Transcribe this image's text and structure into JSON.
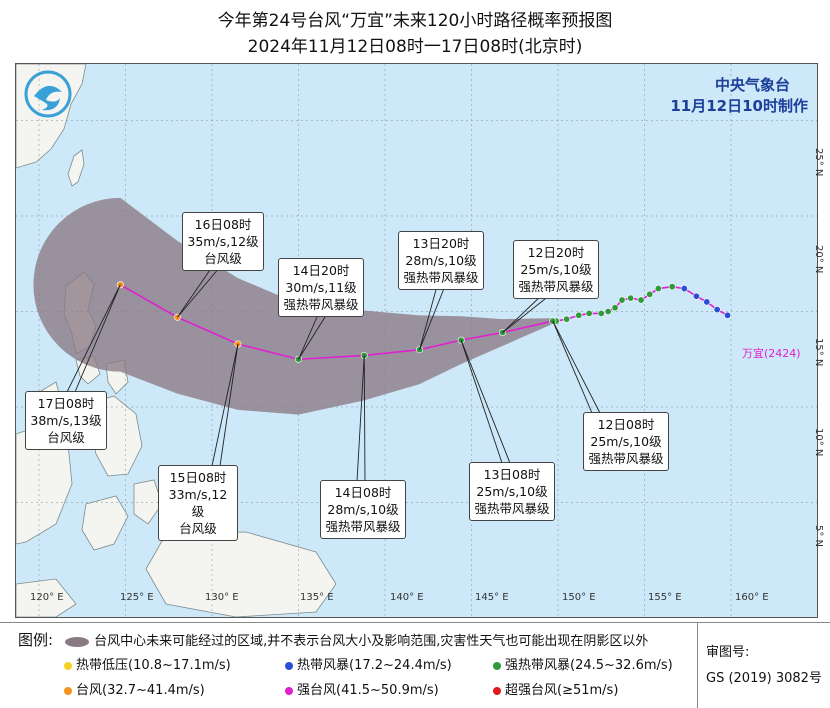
{
  "title_line1": "今年第24号台风“万宜”未来120小时路径概率预报图",
  "title_line2": "2024年11月12日08时一17日08时(北京时)",
  "agency": "中央气象台",
  "issued": "11月12日10时制作",
  "typhoon_name": "万宜(2424)",
  "lon_labels": [
    "120° E",
    "125° E",
    "130° E",
    "135° E",
    "140° E",
    "145° E",
    "150° E",
    "155° E",
    "160° E"
  ],
  "lat_labels": [
    "5° N",
    "10° N",
    "15° N",
    "20° N",
    "25° N"
  ],
  "forecast_labels": [
    {
      "time": "17日08时",
      "wind": "38m/s,13级",
      "level": "台风级"
    },
    {
      "time": "16日08时",
      "wind": "35m/s,12级",
      "level": "台风级"
    },
    {
      "time": "15日08时",
      "wind": "33m/s,12级",
      "level": "台风级"
    },
    {
      "time": "14日20时",
      "wind": "30m/s,11级",
      "level": "强热带风暴级"
    },
    {
      "time": "14日08时",
      "wind": "28m/s,10级",
      "level": "强热带风暴级"
    },
    {
      "time": "13日20时",
      "wind": "28m/s,10级",
      "level": "强热带风暴级"
    },
    {
      "time": "13日08时",
      "wind": "25m/s,10级",
      "level": "强热带风暴级"
    },
    {
      "time": "12日20时",
      "wind": "25m/s,10级",
      "level": "强热带风暴级"
    },
    {
      "time": "12日08时",
      "wind": "25m/s,10级",
      "level": "强热带风暴级"
    }
  ],
  "legend": {
    "title": "图例:",
    "cone_text": "台风中心未来可能经过的区域,并不表示台风大小及影响范围,灾害性天气也可能出现在阴影区以外",
    "categories": [
      {
        "label": "热带低压(10.8~17.1m/s)",
        "color": "#f5d020"
      },
      {
        "label": "热带风暴(17.2~24.4m/s)",
        "color": "#2a4fd6"
      },
      {
        "label": "强热带风暴(24.5~32.6m/s)",
        "color": "#2e9a3a"
      },
      {
        "label": "台风(32.7~41.4m/s)",
        "color": "#f5931e"
      },
      {
        "label": "强台风(41.5~50.9m/s)",
        "color": "#e020d0"
      },
      {
        "label": "超强台风(≥51m/s)",
        "color": "#e01a1a"
      }
    ],
    "cone_color": "#8a7a84"
  },
  "review": {
    "label": "审图号:",
    "number": "GS (2019) 3082号"
  },
  "colors": {
    "sea": "#cde8f8",
    "land": "#f4f4f0",
    "track": "#e020d0",
    "cone": "#8a7a84"
  },
  "track": {
    "observed": [
      [
        159.8,
        14.8
      ],
      [
        159.2,
        15.1
      ],
      [
        158.6,
        15.5
      ],
      [
        158.0,
        15.8
      ],
      [
        157.3,
        16.2
      ],
      [
        156.6,
        16.3
      ],
      [
        155.8,
        16.2
      ],
      [
        155.3,
        15.9
      ],
      [
        154.8,
        15.6
      ],
      [
        154.2,
        15.7
      ],
      [
        153.7,
        15.6
      ],
      [
        153.3,
        15.2
      ],
      [
        152.9,
        15.0
      ],
      [
        152.5,
        14.9
      ],
      [
        151.8,
        14.9
      ],
      [
        151.2,
        14.8
      ],
      [
        150.5,
        14.6
      ],
      [
        149.9,
        14.5
      ]
    ],
    "observed_category": [
      "热带风暴",
      "热带风暴",
      "热带风暴",
      "热带风暴",
      "热带风暴",
      "强热带风暴",
      "强热带风暴",
      "强热带风暴",
      "强热带风暴",
      "强热带风暴",
      "强热带风暴",
      "强热带风暴",
      "强热带风暴",
      "强热带风暴",
      "强热带风暴",
      "强热带风暴",
      "强热带风暴",
      "强热带风暴"
    ],
    "forecast": [
      [
        149.7,
        14.5
      ],
      [
        146.8,
        13.9
      ],
      [
        144.4,
        13.5
      ],
      [
        142.0,
        13.0
      ],
      [
        138.8,
        12.7
      ],
      [
        135.0,
        12.5
      ],
      [
        131.5,
        13.3
      ],
      [
        128.0,
        14.7
      ],
      [
        124.7,
        16.4
      ]
    ],
    "forecast_category": [
      "强热带风暴",
      "强热带风暴",
      "强热带风暴",
      "强热带风暴",
      "强热带风暴",
      "强热带风暴",
      "台风",
      "台风",
      "台风"
    ]
  }
}
